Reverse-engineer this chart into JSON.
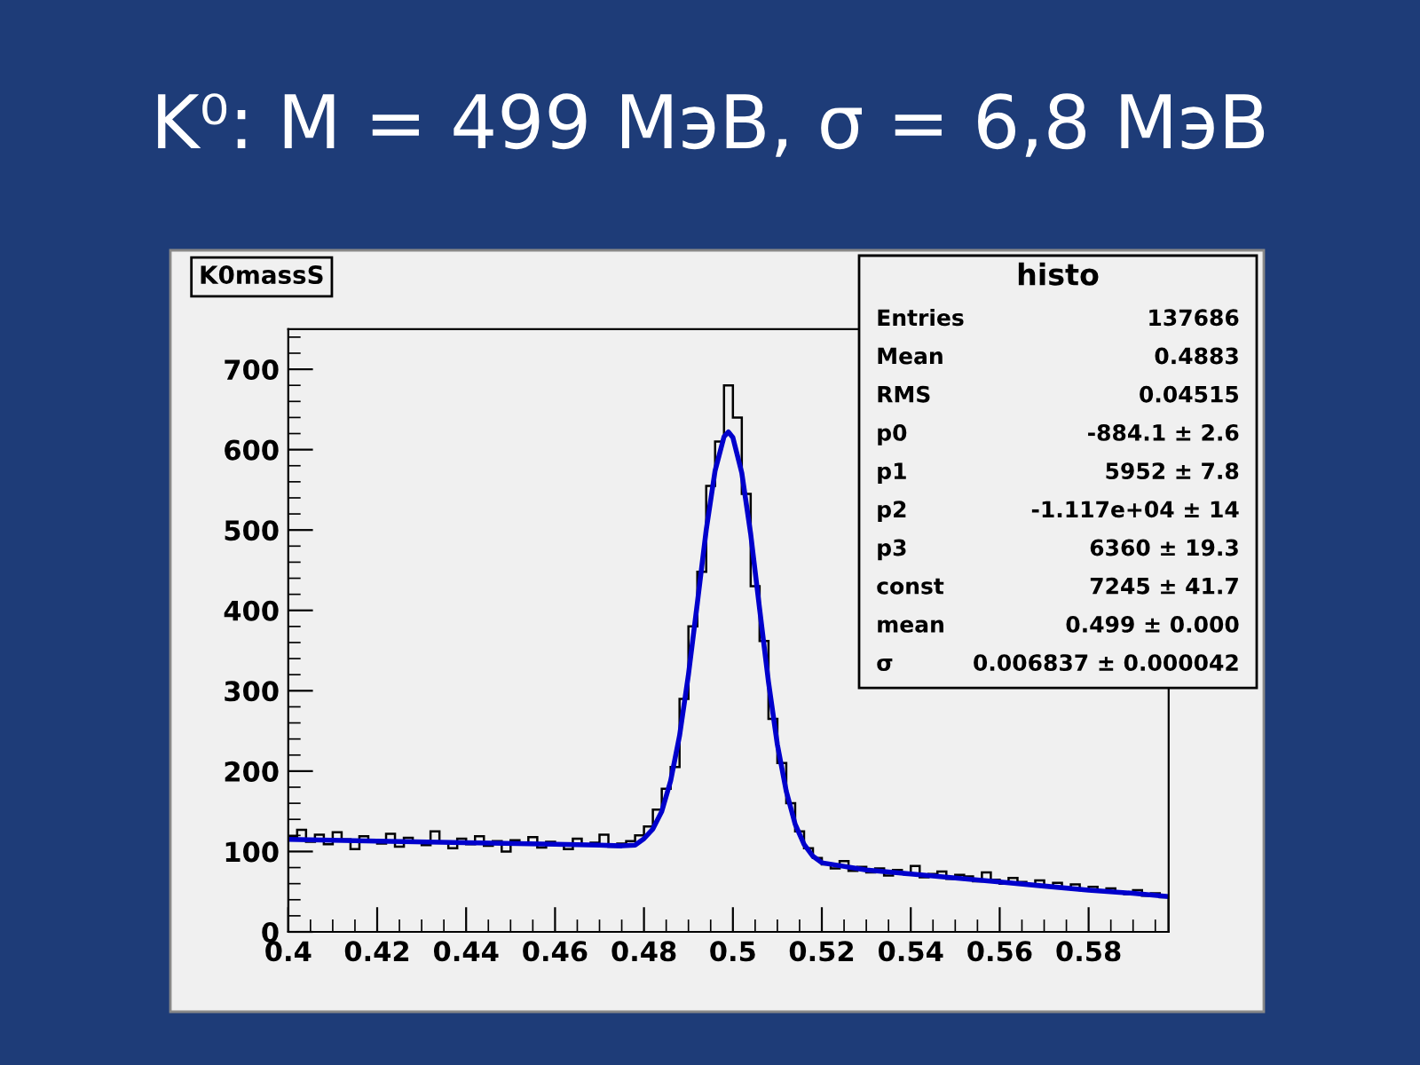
{
  "chart_data": {
    "type": "histogram",
    "title": "K⁰: M = 499 МэВ, σ = 6,8 МэВ",
    "bins": [
      0.4,
      0.402,
      0.404,
      0.406,
      0.408,
      0.41,
      0.412,
      0.414,
      0.416,
      0.418,
      0.42,
      0.422,
      0.424,
      0.426,
      0.428,
      0.43,
      0.432,
      0.434,
      0.436,
      0.438,
      0.44,
      0.442,
      0.444,
      0.446,
      0.448,
      0.45,
      0.452,
      0.454,
      0.456,
      0.458,
      0.46,
      0.462,
      0.464,
      0.466,
      0.468,
      0.47,
      0.472,
      0.474,
      0.476,
      0.478,
      0.48,
      0.482,
      0.484,
      0.486,
      0.488,
      0.49,
      0.492,
      0.494,
      0.496,
      0.498,
      0.5,
      0.502,
      0.504,
      0.506,
      0.508,
      0.51,
      0.512,
      0.514,
      0.516,
      0.518,
      0.52,
      0.522,
      0.524,
      0.526,
      0.528,
      0.53,
      0.532,
      0.534,
      0.536,
      0.538,
      0.54,
      0.542,
      0.544,
      0.546,
      0.548,
      0.55,
      0.552,
      0.554,
      0.556,
      0.558,
      0.56,
      0.562,
      0.564,
      0.566,
      0.568,
      0.57,
      0.572,
      0.574,
      0.576,
      0.578,
      0.58,
      0.582,
      0.584,
      0.586,
      0.588,
      0.59,
      0.592,
      0.594,
      0.596,
      0.598
    ],
    "values": [
      118,
      127,
      112,
      121,
      109,
      124,
      115,
      103,
      119,
      113,
      110,
      122,
      106,
      117,
      111,
      108,
      125,
      112,
      104,
      116,
      109,
      119,
      107,
      113,
      100,
      114,
      110,
      118,
      105,
      112,
      109,
      103,
      116,
      108,
      111,
      121,
      106,
      110,
      113,
      120,
      131,
      152,
      178,
      205,
      290,
      380,
      448,
      555,
      610,
      680,
      640,
      545,
      430,
      362,
      265,
      210,
      160,
      125,
      104,
      92,
      84,
      79,
      88,
      76,
      81,
      74,
      79,
      70,
      77,
      73,
      82,
      68,
      72,
      75,
      66,
      71,
      69,
      63,
      74,
      65,
      60,
      67,
      62,
      58,
      64,
      57,
      61,
      55,
      59,
      52,
      56,
      50,
      54,
      49,
      47,
      52,
      45,
      48,
      43
    ],
    "color": "#000000",
    "series": [
      {
        "type": "line",
        "color": "#0000cc",
        "x": [
          0.4,
          0.42,
          0.44,
          0.46,
          0.47,
          0.475,
          0.478,
          0.48,
          0.482,
          0.484,
          0.486,
          0.488,
          0.49,
          0.492,
          0.494,
          0.496,
          0.498,
          0.499,
          0.5,
          0.502,
          0.504,
          0.506,
          0.508,
          0.51,
          0.512,
          0.514,
          0.516,
          0.518,
          0.52,
          0.53,
          0.54,
          0.55,
          0.56,
          0.57,
          0.58,
          0.59,
          0.598
        ],
        "values": [
          115,
          113,
          111,
          109,
          108,
          107,
          108,
          116,
          128,
          150,
          188,
          244,
          320,
          409,
          500,
          574,
          616,
          622,
          615,
          571,
          495,
          402,
          311,
          233,
          175,
          134,
          109,
          94,
          86,
          77,
          72,
          67,
          62,
          57,
          52,
          48,
          44
        ]
      }
    ],
    "xlim": [
      0.4,
      0.598
    ],
    "ylim": [
      0,
      750
    ],
    "xticks": [
      0.4,
      0.42,
      0.44,
      0.46,
      0.48,
      0.5,
      0.52,
      0.54,
      0.56,
      0.58
    ],
    "yticks": [
      0,
      100,
      200,
      300,
      400,
      500,
      600,
      700
    ],
    "grid": false,
    "legend": false,
    "annotations": [
      "K0massS",
      "histo",
      "Entries",
      "137686",
      "Mean",
      "0.4883",
      "RMS",
      "0.04515",
      "p0",
      "-884.1 ± 2.6",
      "p1",
      "5952 ± 7.8",
      "p2",
      "-1.117e+04 ± 14",
      "p3",
      "6360 ± 19.3",
      "const",
      "7245 ± 41.7",
      "mean",
      "0.499 ± 0.000",
      "σ",
      "0.006837 ± 0.000042"
    ]
  }
}
